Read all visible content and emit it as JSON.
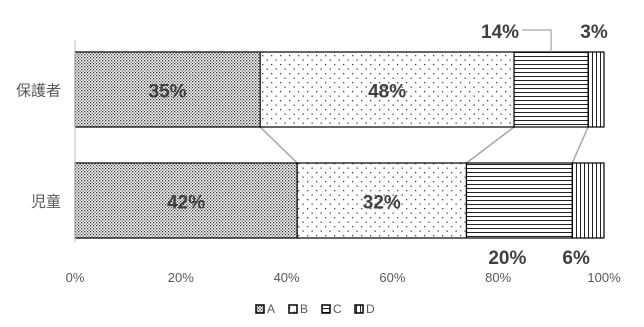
{
  "chart_data": {
    "type": "bar",
    "orientation": "horizontal",
    "stacked": true,
    "normalized_percent": true,
    "categories": [
      "保護者",
      "児童"
    ],
    "series": [
      {
        "name": "A",
        "values": [
          35,
          42
        ],
        "labels": [
          "35%",
          "42%"
        ],
        "pattern": "dense-dots"
      },
      {
        "name": "B",
        "values": [
          48,
          32
        ],
        "labels": [
          "48%",
          "32%"
        ],
        "pattern": "sparse-dots"
      },
      {
        "name": "C",
        "values": [
          14,
          20
        ],
        "labels": [
          "14%",
          "20%"
        ],
        "pattern": "horizontal-lines"
      },
      {
        "name": "D",
        "values": [
          3,
          6
        ],
        "labels": [
          "3%",
          "6%"
        ],
        "pattern": "vertical-lines"
      }
    ],
    "x_ticks": [
      "0%",
      "20%",
      "40%",
      "60%",
      "80%",
      "100%"
    ],
    "xlim": [
      0,
      100
    ],
    "title": "",
    "xlabel": "",
    "ylabel": "",
    "grid": false,
    "legend_position": "bottom",
    "series_lines": true,
    "colors": {
      "bar_border": "#000000",
      "axis_text": "#595959",
      "connector": "#a6a6a6",
      "label": "#404040"
    }
  }
}
